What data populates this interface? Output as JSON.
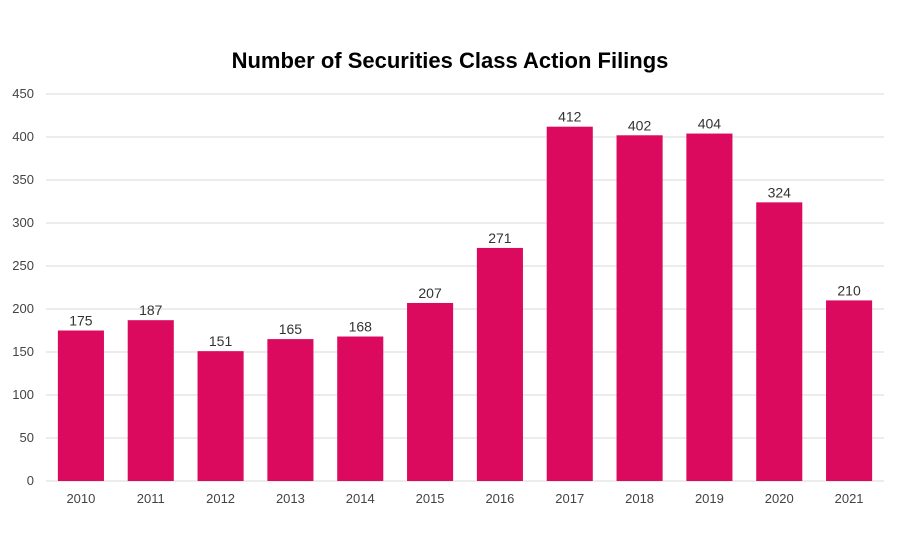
{
  "chart_data": {
    "type": "bar",
    "title": "Number of Securities Class Action Filings",
    "xlabel": "",
    "ylabel": "",
    "categories": [
      "2010",
      "2011",
      "2012",
      "2013",
      "2014",
      "2015",
      "2016",
      "2017",
      "2018",
      "2019",
      "2020",
      "2021"
    ],
    "values": [
      175,
      187,
      151,
      165,
      168,
      207,
      271,
      412,
      402,
      404,
      324,
      210
    ],
    "ylim": [
      0,
      450
    ],
    "yticks": [
      0,
      50,
      100,
      150,
      200,
      250,
      300,
      350,
      400,
      450
    ],
    "grid": true,
    "data_labels": true,
    "bar_color": "#DC0A5F",
    "grid_color": "#D9D9D9"
  }
}
